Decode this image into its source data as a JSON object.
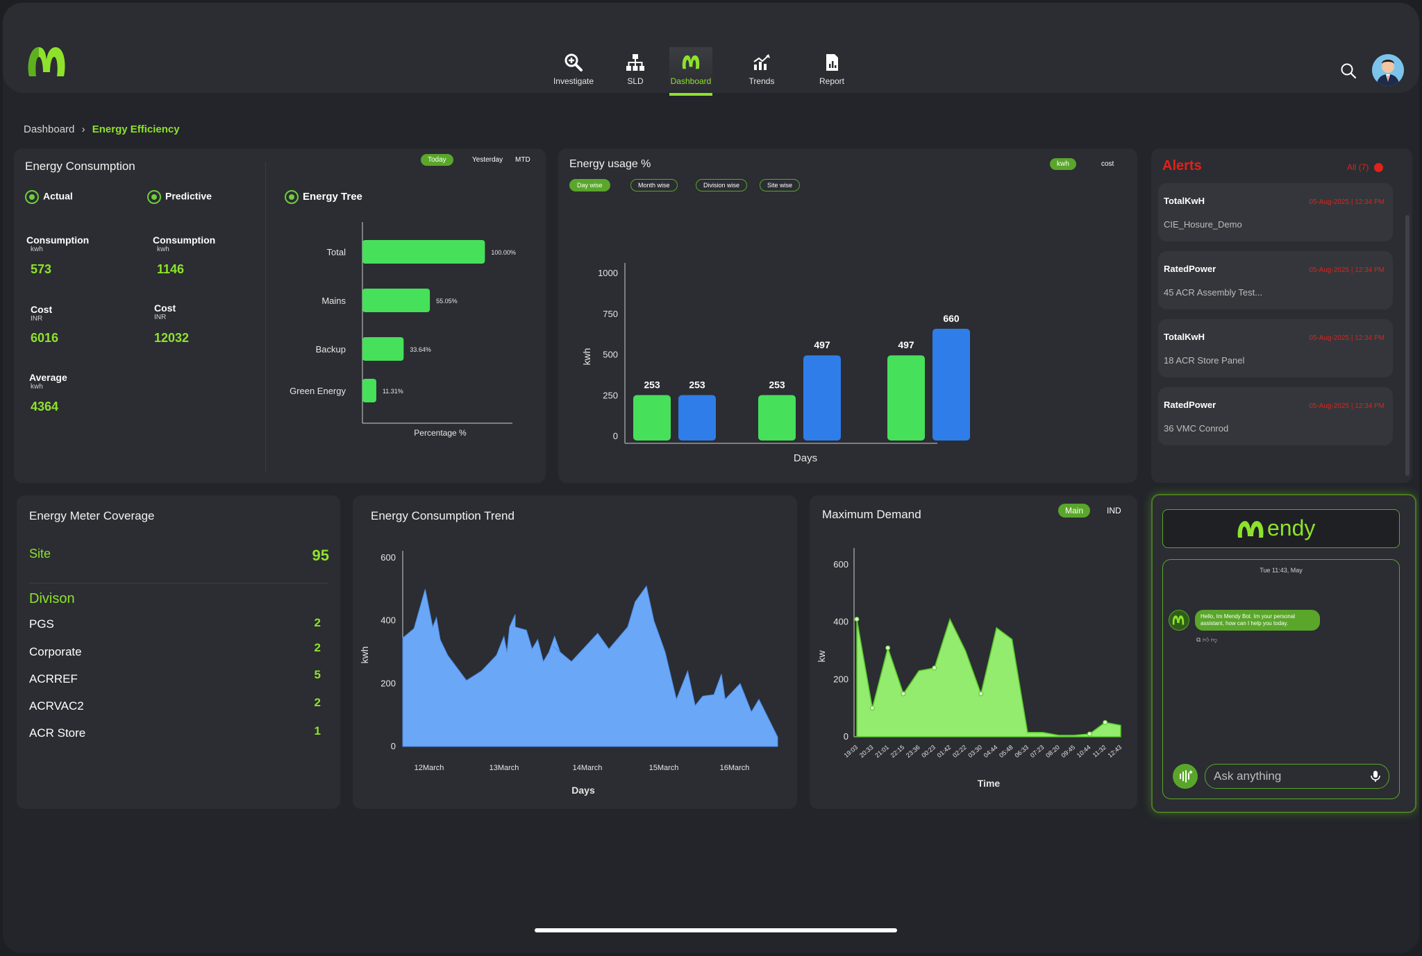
{
  "nav": {
    "items": [
      {
        "label": "Investigate",
        "icon": "zoom-in-icon"
      },
      {
        "label": "SLD",
        "icon": "hierarchy-icon"
      },
      {
        "label": "Dashboard",
        "icon": "logo-icon"
      },
      {
        "label": "Trends",
        "icon": "trend-icon"
      },
      {
        "label": "Report",
        "icon": "report-icon"
      }
    ],
    "active": "Dashboard"
  },
  "breadcrumb": {
    "root": "Dashboard",
    "current": "Energy Efficiency"
  },
  "energy_consumption": {
    "title": "Energy Consumption",
    "tabs": [
      "Today",
      "Yesterday",
      "MTD"
    ],
    "actual": {
      "label": "Actual",
      "consumption_label": "Consumption",
      "consumption_unit": "kwh",
      "consumption_value": "573",
      "cost_label": "Cost",
      "cost_unit": "INR",
      "cost_value": "6016",
      "average_label": "Average",
      "average_unit": "kwh",
      "average_value": "4364"
    },
    "predictive": {
      "label": "Predictive",
      "consumption_label": "Consumption",
      "consumption_unit": "kwh",
      "consumption_value": "1146",
      "cost_label": "Cost",
      "cost_unit": "INR",
      "cost_value": "12032"
    },
    "tree_title": "Energy Tree"
  },
  "energy_usage": {
    "title": "Energy usage %",
    "unit_tabs": [
      "kwh",
      "cost"
    ],
    "filters": [
      "Day wise",
      "Month wise",
      "Division wise",
      "Site wise"
    ]
  },
  "alerts": {
    "title": "Alerts",
    "filter": "All (7)",
    "items": [
      {
        "title": "TotalKwH",
        "time": "05-Aug-2025 | 12:34 PM",
        "source": "CIE_Hosure_Demo"
      },
      {
        "title": "RatedPower",
        "time": "05-Aug-2025 | 12:34 PM",
        "source": "45 ACR Assembly Test..."
      },
      {
        "title": "TotalKwH",
        "time": "05-Aug-2025 | 12:34 PM",
        "source": "18 ACR Store Panel"
      },
      {
        "title": "RatedPower",
        "time": "05-Aug-2025 | 12:34 PM",
        "source": "36 VMC Conrod"
      }
    ]
  },
  "meter_coverage": {
    "title": "Energy Meter Coverage",
    "site_label": "Site",
    "site_value": "95",
    "division_label": "Divison",
    "divisions": [
      {
        "name": "PGS",
        "count": "2"
      },
      {
        "name": "Corporate",
        "count": "2"
      },
      {
        "name": "ACRREF",
        "count": "5"
      },
      {
        "name": "ACRVAC2",
        "count": "2"
      },
      {
        "name": "ACR Store",
        "count": "1"
      }
    ]
  },
  "trend": {
    "title": "Energy Consumption Trend"
  },
  "max_demand": {
    "title": "Maximum Demand",
    "tabs": [
      "Main",
      "IND"
    ]
  },
  "chatbot": {
    "brand": "endy",
    "timestamp": "Tue 11:43, May",
    "message": "Hello, Im Mendy Bot. Im your personal assistant, how can I help you today.",
    "input_placeholder": "Ask anything"
  },
  "colors": {
    "accent": "#8ee22b",
    "bar_green": "#46e05a",
    "bar_blue": "#2f7de8",
    "area_blue": "#6aa8f7",
    "area_green": "#93ec6e",
    "alert_red": "#e0221b"
  },
  "chart_data": [
    {
      "type": "bar",
      "orientation": "horizontal",
      "categories": [
        "Total",
        "Mains",
        "Backup",
        "Green Energy"
      ],
      "values": [
        100.0,
        55.05,
        33.64,
        11.31
      ],
      "value_labels": [
        "100.00%",
        "55.05%",
        "33.64%",
        "11.31%"
      ],
      "xlabel": "Percentage %",
      "xlim": [
        0,
        120
      ]
    },
    {
      "type": "bar",
      "categories": [
        "",
        "",
        ""
      ],
      "series": [
        {
          "values": [
            253,
            253,
            497
          ]
        },
        {
          "values": [
            253,
            497,
            660
          ]
        }
      ],
      "xlabel": "Days",
      "ylabel": "kwh",
      "ylim": [
        0,
        1000
      ],
      "yticks": [
        0,
        250,
        500,
        750,
        1000
      ]
    },
    {
      "type": "area",
      "x_ticks": [
        "12March",
        "13March",
        "14March",
        "15March",
        "16March"
      ],
      "points": [
        [
          0,
          345
        ],
        [
          0.03,
          375
        ],
        [
          0.06,
          500
        ],
        [
          0.08,
          380
        ],
        [
          0.09,
          410
        ],
        [
          0.1,
          340
        ],
        [
          0.12,
          290
        ],
        [
          0.17,
          210
        ],
        [
          0.21,
          240
        ],
        [
          0.25,
          290
        ],
        [
          0.27,
          350
        ],
        [
          0.278,
          300
        ],
        [
          0.285,
          380
        ],
        [
          0.3,
          420
        ],
        [
          0.3,
          410
        ],
        [
          0.3,
          380
        ],
        [
          0.33,
          370
        ],
        [
          0.345,
          310
        ],
        [
          0.36,
          340
        ],
        [
          0.375,
          270
        ],
        [
          0.39,
          300
        ],
        [
          0.405,
          350
        ],
        [
          0.42,
          300
        ],
        [
          0.4,
          320
        ],
        [
          0.45,
          270
        ],
        [
          0.52,
          360
        ],
        [
          0.55,
          310
        ],
        [
          0.6,
          380
        ],
        [
          0.62,
          460
        ],
        [
          0.65,
          510
        ],
        [
          0.67,
          400
        ],
        [
          0.7,
          300
        ],
        [
          0.73,
          150
        ],
        [
          0.76,
          240
        ],
        [
          0.78,
          130
        ],
        [
          0.8,
          160
        ],
        [
          0.83,
          165
        ],
        [
          0.85,
          230
        ],
        [
          0.86,
          150
        ],
        [
          0.9,
          200
        ],
        [
          0.93,
          110
        ],
        [
          0.95,
          150
        ],
        [
          1.0,
          30
        ]
      ],
      "xlabel": "Days",
      "ylabel": "kwh",
      "ylim": [
        0,
        600
      ],
      "yticks": [
        0,
        200,
        400,
        600
      ]
    },
    {
      "type": "area",
      "x_ticks": [
        "19:03",
        "20:33",
        "21:01",
        "22:15",
        "23:36",
        "00:23",
        "01:42",
        "02:22",
        "03:30",
        "04:44",
        "05:48",
        "06:33",
        "07:23",
        "08:20",
        "09:45",
        "10:44",
        "11:32",
        "12:43"
      ],
      "points": [
        [
          0,
          410
        ],
        [
          1,
          100
        ],
        [
          2,
          310
        ],
        [
          3,
          150
        ],
        [
          4,
          230
        ],
        [
          5,
          240
        ],
        [
          6,
          410
        ],
        [
          7,
          300
        ],
        [
          8,
          150
        ],
        [
          9,
          380
        ],
        [
          10,
          340
        ],
        [
          11,
          15
        ],
        [
          12,
          15
        ],
        [
          13,
          5
        ],
        [
          14,
          5
        ],
        [
          15,
          10
        ],
        [
          16,
          50
        ],
        [
          17,
          40
        ]
      ],
      "xlabel": "Time",
      "ylabel": "kw",
      "ylim": [
        0,
        600
      ],
      "yticks": [
        0,
        200,
        400,
        600
      ]
    }
  ]
}
